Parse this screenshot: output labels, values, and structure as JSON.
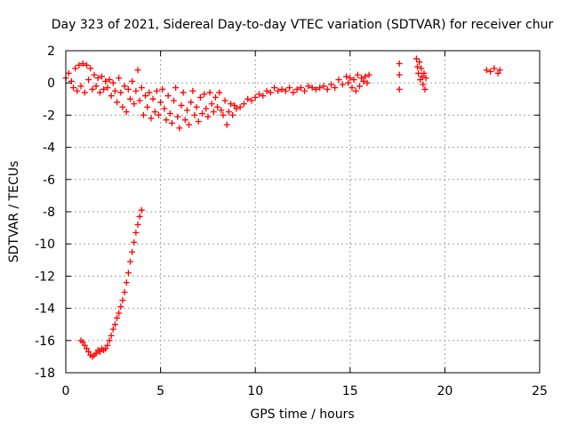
{
  "chart_data": {
    "type": "scatter",
    "title": "Day 323 of 2021, Sidereal Day-to-day VTEC variation (SDTVAR) for receiver chur",
    "xlabel": "GPS time / hours",
    "ylabel": "SDTVAR / TECUs",
    "xlim": [
      0,
      25
    ],
    "ylim": [
      -18,
      2
    ],
    "xticks": [
      0,
      5,
      10,
      15,
      20,
      25
    ],
    "yticks": [
      -18,
      -16,
      -14,
      -12,
      -10,
      -8,
      -6,
      -4,
      -2,
      0,
      2
    ],
    "xtick_labels": [
      "0",
      "5",
      "10",
      "15",
      "20",
      "25"
    ],
    "ytick_labels": [
      "-18",
      "-16",
      "-14",
      "-12",
      "-10",
      "-8",
      "-6",
      "-4",
      "-2",
      "0",
      "2"
    ],
    "grid": true,
    "marker": "+",
    "series": [
      {
        "name": "SDTVAR",
        "color": "#ff0000",
        "points": [
          [
            0.0,
            0.3
          ],
          [
            0.15,
            0.6
          ],
          [
            0.3,
            0.1
          ],
          [
            0.4,
            -0.3
          ],
          [
            0.5,
            0.9
          ],
          [
            0.6,
            -0.5
          ],
          [
            0.7,
            1.1
          ],
          [
            0.8,
            -0.2
          ],
          [
            0.9,
            1.2
          ],
          [
            1.0,
            -0.6
          ],
          [
            1.1,
            1.1
          ],
          [
            1.2,
            0.2
          ],
          [
            1.3,
            0.9
          ],
          [
            1.4,
            -0.4
          ],
          [
            1.5,
            0.5
          ],
          [
            1.6,
            -0.2
          ],
          [
            1.7,
            0.3
          ],
          [
            1.8,
            -0.6
          ],
          [
            1.9,
            0.4
          ],
          [
            2.0,
            -0.4
          ],
          [
            2.1,
            0.1
          ],
          [
            2.2,
            -0.3
          ],
          [
            2.3,
            0.2
          ],
          [
            2.4,
            -0.8
          ],
          [
            2.5,
            0.0
          ],
          [
            2.6,
            -0.5
          ],
          [
            2.7,
            -1.2
          ],
          [
            2.8,
            0.3
          ],
          [
            2.9,
            -0.6
          ],
          [
            3.0,
            -1.5
          ],
          [
            3.1,
            -0.2
          ],
          [
            3.2,
            -1.8
          ],
          [
            3.3,
            -0.4
          ],
          [
            3.4,
            -1.0
          ],
          [
            3.5,
            0.1
          ],
          [
            3.6,
            -1.3
          ],
          [
            3.7,
            -0.5
          ],
          [
            3.8,
            0.8
          ],
          [
            3.9,
            -1.1
          ],
          [
            4.0,
            -0.3
          ],
          [
            4.1,
            -2.0
          ],
          [
            4.2,
            -0.8
          ],
          [
            4.3,
            -1.5
          ],
          [
            4.4,
            -0.6
          ],
          [
            4.5,
            -2.2
          ],
          [
            4.6,
            -1.0
          ],
          [
            4.7,
            -1.8
          ],
          [
            4.8,
            -0.5
          ],
          [
            4.9,
            -2.0
          ],
          [
            5.0,
            -1.2
          ],
          [
            5.1,
            -0.4
          ],
          [
            5.2,
            -1.6
          ],
          [
            5.3,
            -2.3
          ],
          [
            5.4,
            -0.8
          ],
          [
            5.5,
            -1.9
          ],
          [
            5.6,
            -2.5
          ],
          [
            5.7,
            -1.1
          ],
          [
            5.8,
            -0.3
          ],
          [
            5.9,
            -2.1
          ],
          [
            6.0,
            -2.8
          ],
          [
            6.1,
            -1.4
          ],
          [
            6.2,
            -0.6
          ],
          [
            6.3,
            -2.3
          ],
          [
            6.4,
            -1.7
          ],
          [
            6.5,
            -2.6
          ],
          [
            6.6,
            -1.2
          ],
          [
            6.7,
            -0.5
          ],
          [
            6.8,
            -2.0
          ],
          [
            6.9,
            -1.5
          ],
          [
            7.0,
            -2.4
          ],
          [
            7.1,
            -0.9
          ],
          [
            7.2,
            -1.9
          ],
          [
            7.3,
            -0.7
          ],
          [
            7.4,
            -1.6
          ],
          [
            7.5,
            -2.1
          ],
          [
            7.6,
            -0.6
          ],
          [
            7.7,
            -1.3
          ],
          [
            7.8,
            -1.8
          ],
          [
            7.9,
            -0.9
          ],
          [
            8.0,
            -1.5
          ],
          [
            8.1,
            -0.6
          ],
          [
            8.2,
            -1.7
          ],
          [
            8.3,
            -2.0
          ],
          [
            8.4,
            -1.1
          ],
          [
            8.5,
            -2.6
          ],
          [
            8.6,
            -1.8
          ],
          [
            8.7,
            -1.3
          ],
          [
            8.8,
            -2.0
          ],
          [
            8.9,
            -1.4
          ],
          [
            9.0,
            -1.6
          ],
          [
            9.2,
            -1.5
          ],
          [
            9.4,
            -1.3
          ],
          [
            9.6,
            -1.0
          ],
          [
            9.8,
            -1.1
          ],
          [
            10.0,
            -0.9
          ],
          [
            10.2,
            -0.7
          ],
          [
            10.4,
            -0.8
          ],
          [
            10.6,
            -0.5
          ],
          [
            10.8,
            -0.6
          ],
          [
            11.0,
            -0.3
          ],
          [
            11.2,
            -0.5
          ],
          [
            11.4,
            -0.4
          ],
          [
            11.6,
            -0.5
          ],
          [
            11.8,
            -0.3
          ],
          [
            12.0,
            -0.6
          ],
          [
            12.2,
            -0.4
          ],
          [
            12.4,
            -0.3
          ],
          [
            12.6,
            -0.5
          ],
          [
            12.8,
            -0.2
          ],
          [
            13.0,
            -0.3
          ],
          [
            13.2,
            -0.4
          ],
          [
            13.4,
            -0.3
          ],
          [
            13.6,
            -0.2
          ],
          [
            13.8,
            -0.4
          ],
          [
            14.0,
            -0.1
          ],
          [
            14.2,
            -0.3
          ],
          [
            14.4,
            0.2
          ],
          [
            14.6,
            -0.1
          ],
          [
            14.8,
            0.4
          ],
          [
            14.9,
            0.0
          ],
          [
            15.0,
            0.3
          ],
          [
            15.1,
            -0.3
          ],
          [
            15.2,
            0.2
          ],
          [
            15.3,
            -0.5
          ],
          [
            15.4,
            0.5
          ],
          [
            15.5,
            -0.2
          ],
          [
            15.6,
            0.3
          ],
          [
            15.7,
            0.1
          ],
          [
            15.8,
            0.4
          ],
          [
            15.9,
            0.0
          ],
          [
            16.0,
            0.5
          ],
          [
            17.6,
            1.2
          ],
          [
            17.6,
            0.5
          ],
          [
            17.6,
            -0.4
          ],
          [
            18.5,
            1.5
          ],
          [
            18.55,
            1.0
          ],
          [
            18.6,
            0.6
          ],
          [
            18.65,
            1.3
          ],
          [
            18.7,
            0.2
          ],
          [
            18.75,
            0.9
          ],
          [
            18.8,
            0.4
          ],
          [
            18.85,
            -0.1
          ],
          [
            18.9,
            0.6
          ],
          [
            18.95,
            -0.4
          ],
          [
            19.0,
            0.3
          ],
          [
            22.2,
            0.8
          ],
          [
            22.4,
            0.7
          ],
          [
            22.6,
            0.9
          ],
          [
            22.8,
            0.6
          ],
          [
            22.9,
            0.8
          ],
          [
            0.8,
            -16.0
          ],
          [
            0.9,
            -16.1
          ],
          [
            1.0,
            -16.3
          ],
          [
            1.1,
            -16.5
          ],
          [
            1.2,
            -16.7
          ],
          [
            1.3,
            -16.9
          ],
          [
            1.4,
            -17.0
          ],
          [
            1.5,
            -16.9
          ],
          [
            1.6,
            -16.8
          ],
          [
            1.7,
            -16.6
          ],
          [
            1.8,
            -16.7
          ],
          [
            1.9,
            -16.5
          ],
          [
            2.0,
            -16.6
          ],
          [
            2.1,
            -16.5
          ],
          [
            2.2,
            -16.3
          ],
          [
            2.3,
            -16.0
          ],
          [
            2.4,
            -15.7
          ],
          [
            2.5,
            -15.3
          ],
          [
            2.6,
            -15.0
          ],
          [
            2.7,
            -14.6
          ],
          [
            2.8,
            -14.3
          ],
          [
            2.9,
            -13.9
          ],
          [
            3.0,
            -13.5
          ],
          [
            3.1,
            -13.0
          ],
          [
            3.2,
            -12.4
          ],
          [
            3.3,
            -11.8
          ],
          [
            3.4,
            -11.1
          ],
          [
            3.5,
            -10.5
          ],
          [
            3.6,
            -9.9
          ],
          [
            3.7,
            -9.3
          ],
          [
            3.8,
            -8.8
          ],
          [
            3.9,
            -8.3
          ],
          [
            4.0,
            -7.9
          ]
        ]
      }
    ]
  }
}
